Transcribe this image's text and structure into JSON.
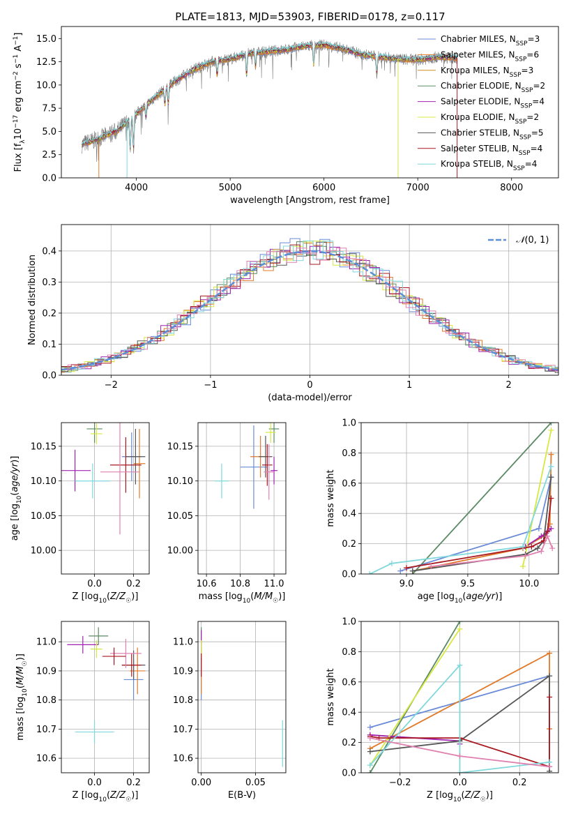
{
  "figure_title": "PLATE=1813, MJD=53903, FIBERID=0178, z=0.117",
  "colors": {
    "Chabrier MILES": "#6a8ad8",
    "Salpeter MILES": "#e07a2a",
    "Kroupa MILES": "#d08a20",
    "Chabrier ELODIE": "#5a8a62",
    "Salpeter ELODIE": "#a020b0",
    "Kroupa ELODIE": "#d8e840",
    "Chabrier STELIB": "#555555",
    "Salpeter STELIB": "#a81820",
    "Kroupa STELIB": "#7fd8dc",
    "extra_pink": "#e080b0",
    "gauss": "#5b8ed6",
    "grid": "#b0b0b0"
  },
  "chart_data": [
    {
      "id": "spectrum",
      "type": "line",
      "title": "PLATE=1813, MJD=53903, FIBERID=0178, z=0.117",
      "xlabel": "wavelength [Angstrom, rest frame]",
      "ylabel": "Flux [f_λ10^-17 erg cm^-2 s^-1 A^-1]",
      "xlim": [
        3200,
        8500
      ],
      "ylim": [
        0,
        16.3
      ],
      "xticks": [
        4000,
        5000,
        6000,
        7000,
        8000
      ],
      "yticks": [
        0.0,
        2.5,
        5.0,
        7.5,
        10.0,
        12.5,
        15.0
      ],
      "grid": false,
      "legend_position": "top-right",
      "legend": [
        {
          "label": "Chabrier MILES, N_SSP=3",
          "base": "Chabrier MILES, N",
          "sub": "SSP",
          "tail": "=3",
          "color": "#6a8ad8"
        },
        {
          "label": "Salpeter MILES, N_SSP=6",
          "base": "Salpeter MILES, N",
          "sub": "SSP",
          "tail": "=6",
          "color": "#e07a2a"
        },
        {
          "label": "Kroupa MILES, N_SSP=3",
          "base": "Kroupa MILES, N",
          "sub": "SSP",
          "tail": "=3",
          "color": "#d08a20"
        },
        {
          "label": "Chabrier ELODIE, N_SSP=2",
          "base": "Chabrier ELODIE, N",
          "sub": "SSP",
          "tail": "=2",
          "color": "#5a8a62"
        },
        {
          "label": "Salpeter ELODIE, N_SSP=4",
          "base": "Salpeter ELODIE, N",
          "sub": "SSP",
          "tail": "=4",
          "color": "#a020b0"
        },
        {
          "label": "Kroupa ELODIE, N_SSP=2",
          "base": "Kroupa ELODIE, N",
          "sub": "SSP",
          "tail": "=2",
          "color": "#d8e840"
        },
        {
          "label": "Chabrier STELIB, N_SSP=5",
          "base": "Chabrier STELIB, N",
          "sub": "SSP",
          "tail": "=5",
          "color": "#555555"
        },
        {
          "label": "Salpeter STELIB, N_SSP=4",
          "base": "Salpeter STELIB, N",
          "sub": "SSP",
          "tail": "=4",
          "color": "#a81820"
        },
        {
          "label": "Kroupa STELIB, N_SSP=4",
          "base": "Kroupa STELIB, N",
          "sub": "SSP",
          "tail": "=4",
          "color": "#7fd8dc"
        }
      ],
      "continuum": [
        [
          3420,
          3.6
        ],
        [
          3600,
          4.2
        ],
        [
          3800,
          5.1
        ],
        [
          4000,
          6.9
        ],
        [
          4200,
          8.7
        ],
        [
          4400,
          10.3
        ],
        [
          4600,
          11.6
        ],
        [
          4800,
          12.5
        ],
        [
          5000,
          12.8
        ],
        [
          5200,
          13.4
        ],
        [
          5400,
          13.6
        ],
        [
          5600,
          13.8
        ],
        [
          5800,
          14.2
        ],
        [
          6000,
          14.3
        ],
        [
          6200,
          13.9
        ],
        [
          6400,
          13.3
        ],
        [
          6600,
          13.0
        ],
        [
          6800,
          12.8
        ],
        [
          7000,
          12.7
        ],
        [
          7200,
          13.0
        ],
        [
          7420,
          12.9
        ]
      ],
      "absorption_lines": [
        [
          3934,
          3.2
        ],
        [
          3969,
          3.4
        ],
        [
          4102,
          1.3
        ],
        [
          4304,
          1.6
        ],
        [
          4340,
          1.8
        ],
        [
          4861,
          1.5
        ],
        [
          5175,
          2.2
        ],
        [
          5270,
          1.4
        ],
        [
          5890,
          2.0
        ],
        [
          6563,
          1.8
        ]
      ],
      "model_dropouts": [
        {
          "series": "Kroupa STELIB",
          "x": 3900
        },
        {
          "series": "Salpeter MILES",
          "x": 3600
        },
        {
          "series": "Kroupa ELODIE",
          "x": 6790
        },
        {
          "series": "Salpeter STELIB",
          "x": 7420
        }
      ]
    },
    {
      "id": "residual-hist",
      "type": "histogram",
      "xlabel": "(data-model)/error",
      "ylabel": "Normed distribution",
      "xlim": [
        -2.5,
        2.5
      ],
      "ylim": [
        0,
        0.485
      ],
      "xticks": [
        -2,
        -1,
        0,
        1,
        2
      ],
      "yticks": [
        0.0,
        0.1,
        0.2,
        0.3,
        0.4
      ],
      "grid": true,
      "legend_position": "top-right",
      "gaussian_label": "𝒩(0,1)",
      "gaussian_mean": 0,
      "gaussian_sigma": 1,
      "bin_width": 0.1
    },
    {
      "id": "age-vs-Z",
      "type": "scatter",
      "xlabel": "Z [log10(Z/Z☉)]",
      "ylabel": "age [log10(age/yr)]",
      "xlim": [
        -0.17,
        0.28
      ],
      "ylim": [
        9.966,
        10.184
      ],
      "xticks": [
        0.0,
        0.2
      ],
      "yticks": [
        10.0,
        10.05,
        10.1,
        10.15
      ],
      "grid": true,
      "points": [
        {
          "series": "Chabrier MILES",
          "x": 0.19,
          "y": 10.135,
          "xerr": 0.05,
          "yerr": 0.035
        },
        {
          "series": "Salpeter MILES",
          "x": 0.23,
          "y": 10.125,
          "xerr": 0.03,
          "yerr": 0.05
        },
        {
          "series": "Chabrier ELODIE",
          "x": 0.0,
          "y": 10.175,
          "xerr": 0.04,
          "yerr": 0.02
        },
        {
          "series": "Salpeter ELODIE",
          "x": -0.1,
          "y": 10.115,
          "xerr": 0.08,
          "yerr": 0.03
        },
        {
          "series": "Kroupa ELODIE",
          "x": 0.01,
          "y": 10.168,
          "xerr": 0.03,
          "yerr": 0.015
        },
        {
          "series": "Chabrier STELIB",
          "x": 0.21,
          "y": 10.135,
          "xerr": 0.05,
          "yerr": 0.04
        },
        {
          "series": "Salpeter STELIB",
          "x": 0.16,
          "y": 10.123,
          "xerr": 0.08,
          "yerr": 0.04
        },
        {
          "series": "Kroupa STELIB",
          "x": -0.01,
          "y": 10.1,
          "xerr": 0.09,
          "yerr": 0.025
        },
        {
          "series": "extra_pink",
          "x": 0.13,
          "y": 10.113,
          "xerr": 0.1,
          "yerr": 0.09
        }
      ]
    },
    {
      "id": "age-vs-mass",
      "type": "scatter",
      "xlabel": "mass [log10(M/M☉)]",
      "xlim": [
        10.55,
        11.07
      ],
      "ylim": [
        9.966,
        10.184
      ],
      "xticks": [
        10.6,
        10.8,
        11.0
      ],
      "yticks": [
        10.0,
        10.05,
        10.1,
        10.15
      ],
      "grid": true,
      "points": [
        {
          "series": "Chabrier MILES",
          "x": 10.88,
          "y": 10.12,
          "xerr": 0.08,
          "yerr": 0.06
        },
        {
          "series": "Salpeter MILES",
          "x": 10.92,
          "y": 10.135,
          "xerr": 0.06,
          "yerr": 0.03
        },
        {
          "series": "Chabrier ELODIE",
          "x": 11.0,
          "y": 10.175,
          "xerr": 0.03,
          "yerr": 0.02
        },
        {
          "series": "Salpeter ELODIE",
          "x": 11.0,
          "y": 10.115,
          "xerr": 0.02,
          "yerr": 0.02
        },
        {
          "series": "Kroupa ELODIE",
          "x": 10.98,
          "y": 10.17,
          "xerr": 0.03,
          "yerr": 0.015
        },
        {
          "series": "Chabrier STELIB",
          "x": 10.95,
          "y": 10.135,
          "xerr": 0.04,
          "yerr": 0.03
        },
        {
          "series": "Salpeter STELIB",
          "x": 10.96,
          "y": 10.123,
          "xerr": 0.03,
          "yerr": 0.03
        },
        {
          "series": "Kroupa STELIB",
          "x": 10.69,
          "y": 10.1,
          "xerr": 0.04,
          "yerr": 0.025
        },
        {
          "series": "extra_pink",
          "x": 10.97,
          "y": 10.113,
          "xerr": 0.03,
          "yerr": 0.04
        }
      ]
    },
    {
      "id": "weight-vs-age",
      "type": "line",
      "xlabel": "age [log10(age/yr)]",
      "ylabel": "mass weight",
      "xlim": [
        8.63,
        10.24
      ],
      "ylim": [
        0,
        1.0
      ],
      "xticks": [
        9.0,
        9.5,
        10.0
      ],
      "yticks": [
        0.0,
        0.2,
        0.4,
        0.6,
        0.8,
        1.0
      ],
      "grid": true,
      "series": [
        {
          "name": "Chabrier MILES",
          "x": [
            8.95,
            10.08,
            10.18
          ],
          "y": [
            0.02,
            0.3,
            0.64
          ]
        },
        {
          "name": "Salpeter MILES",
          "x": [
            9.05,
            9.95,
            10.12,
            10.15,
            10.17,
            10.18
          ],
          "y": [
            0.02,
            0.17,
            0.25,
            0.28,
            0.33,
            0.79
          ]
        },
        {
          "name": "Chabrier ELODIE",
          "x": [
            9.05,
            10.18
          ],
          "y": [
            0.0,
            1.0
          ]
        },
        {
          "name": "Salpeter ELODIE",
          "x": [
            9.97,
            10.1,
            10.14,
            10.18
          ],
          "y": [
            0.18,
            0.25,
            0.27,
            0.3
          ]
        },
        {
          "name": "Kroupa ELODIE",
          "x": [
            9.95,
            10.18
          ],
          "y": [
            0.05,
            0.95
          ]
        },
        {
          "name": "Chabrier STELIB",
          "x": [
            9.05,
            9.97,
            10.07,
            10.12,
            10.18
          ],
          "y": [
            0.02,
            0.13,
            0.17,
            0.22,
            0.64
          ]
        },
        {
          "name": "Salpeter STELIB",
          "x": [
            9.0,
            10.02,
            10.12,
            10.15,
            10.18
          ],
          "y": [
            0.04,
            0.18,
            0.22,
            0.28,
            0.5
          ]
        },
        {
          "name": "Kroupa STELIB",
          "x": [
            8.7,
            8.88,
            9.95,
            10.18
          ],
          "y": [
            0.0,
            0.07,
            0.18,
            0.71
          ]
        },
        {
          "name": "extra_pink",
          "x": [
            9.2,
            9.97,
            10.1,
            10.15,
            10.19
          ],
          "y": [
            0.05,
            0.12,
            0.15,
            0.25,
            0.17
          ]
        }
      ]
    },
    {
      "id": "mass-vs-Z",
      "type": "scatter",
      "xlabel": "Z [log10(Z/Z☉)]",
      "ylabel": "mass [log10(M/M☉)]",
      "xlim": [
        -0.17,
        0.28
      ],
      "ylim": [
        10.55,
        11.07
      ],
      "xticks": [
        0.0,
        0.2
      ],
      "yticks": [
        10.6,
        10.7,
        10.8,
        10.9,
        11.0
      ],
      "grid": true,
      "points": [
        {
          "series": "Chabrier MILES",
          "x": 0.2,
          "y": 10.87,
          "xerr": 0.05,
          "yerr": 0.07
        },
        {
          "series": "Salpeter MILES",
          "x": 0.22,
          "y": 10.9,
          "xerr": 0.04,
          "yerr": 0.08
        },
        {
          "series": "Chabrier ELODIE",
          "x": 0.02,
          "y": 11.02,
          "xerr": 0.05,
          "yerr": 0.03
        },
        {
          "series": "Salpeter ELODIE",
          "x": -0.06,
          "y": 10.99,
          "xerr": 0.08,
          "yerr": 0.03
        },
        {
          "series": "Kroupa ELODIE",
          "x": 0.01,
          "y": 10.975,
          "xerr": 0.03,
          "yerr": 0.03
        },
        {
          "series": "Chabrier STELIB",
          "x": 0.2,
          "y": 10.92,
          "xerr": 0.06,
          "yerr": 0.05
        },
        {
          "series": "Salpeter STELIB",
          "x": 0.19,
          "y": 10.92,
          "xerr": 0.05,
          "yerr": 0.04
        },
        {
          "series": "Kroupa STELIB",
          "x": 0.0,
          "y": 10.69,
          "xerr": 0.1,
          "yerr": 0.04
        },
        {
          "series": "extra_pink",
          "x": 0.16,
          "y": 10.96,
          "xerr": 0.08,
          "yerr": 0.05
        },
        {
          "series": "Salpeter STELIB",
          "x": 0.1,
          "y": 10.95,
          "xerr": 0.06,
          "yerr": 0.03
        }
      ]
    },
    {
      "id": "mass-vs-EBV",
      "type": "scatter",
      "xlabel": "E(B-V)",
      "xlim": [
        -0.003,
        0.078
      ],
      "ylim": [
        10.55,
        11.07
      ],
      "xticks": [
        0.0,
        0.05
      ],
      "yticks": [
        10.6,
        10.7,
        10.8,
        10.9,
        11.0
      ],
      "grid": true,
      "points": [
        {
          "series": "Chabrier MILES",
          "x": 0.0,
          "y": 10.87,
          "yerr": 0.07
        },
        {
          "series": "Salpeter MILES",
          "x": 0.0,
          "y": 10.9,
          "yerr": 0.08
        },
        {
          "series": "Chabrier ELODIE",
          "x": 0.0,
          "y": 11.02,
          "yerr": 0.03
        },
        {
          "series": "Salpeter ELODIE",
          "x": 0.0,
          "y": 10.99,
          "yerr": 0.05
        },
        {
          "series": "Kroupa ELODIE",
          "x": 0.0,
          "y": 10.975,
          "yerr": 0.03
        },
        {
          "series": "Salpeter STELIB",
          "x": 0.0,
          "y": 10.92,
          "yerr": 0.04
        },
        {
          "series": "Kroupa STELIB",
          "x": 0.075,
          "y": 10.65,
          "yerr": 0.08
        }
      ]
    },
    {
      "id": "weight-vs-Z",
      "type": "line",
      "xlabel": "Z [log10(Z/Z☉)]",
      "ylabel": "mass weight",
      "xlim": [
        -0.33,
        0.33
      ],
      "ylim": [
        0,
        1.0
      ],
      "xticks": [
        -0.2,
        0.0,
        0.2
      ],
      "yticks": [
        0.0,
        0.2,
        0.4,
        0.6,
        0.8,
        1.0
      ],
      "grid": true,
      "series": [
        {
          "name": "Chabrier MILES",
          "x": [
            -0.3,
            0.3
          ],
          "y": [
            0.3,
            0.64
          ]
        },
        {
          "name": "Salpeter MILES",
          "x": [
            -0.3,
            0.3,
            0.3
          ],
          "y": [
            0.16,
            0.79,
            0.29
          ]
        },
        {
          "name": "Chabrier ELODIE",
          "x": [
            -0.3,
            0.0
          ],
          "y": [
            0.0,
            1.0
          ]
        },
        {
          "name": "Salpeter ELODIE",
          "x": [
            -0.3,
            0.0,
            0.0
          ],
          "y": [
            0.25,
            0.21,
            0.19
          ]
        },
        {
          "name": "Kroupa ELODIE",
          "x": [
            -0.3,
            0.0
          ],
          "y": [
            0.05,
            0.95
          ]
        },
        {
          "name": "Chabrier STELIB",
          "x": [
            -0.3,
            0.0,
            0.3,
            0.3
          ],
          "y": [
            0.14,
            0.21,
            0.64,
            0.01
          ]
        },
        {
          "name": "Salpeter STELIB",
          "x": [
            -0.3,
            -0.27,
            0.0,
            0.3,
            0.3
          ],
          "y": [
            0.24,
            0.23,
            0.23,
            0.04,
            0.5
          ]
        },
        {
          "name": "Kroupa STELIB",
          "x": [
            -0.3,
            0.0,
            0.0,
            0.3
          ],
          "y": [
            0.05,
            0.71,
            0.0,
            0.07
          ]
        },
        {
          "name": "extra_pink",
          "x": [
            -0.3,
            0.0,
            0.3
          ],
          "y": [
            0.23,
            0.11,
            0.04
          ]
        }
      ]
    }
  ]
}
